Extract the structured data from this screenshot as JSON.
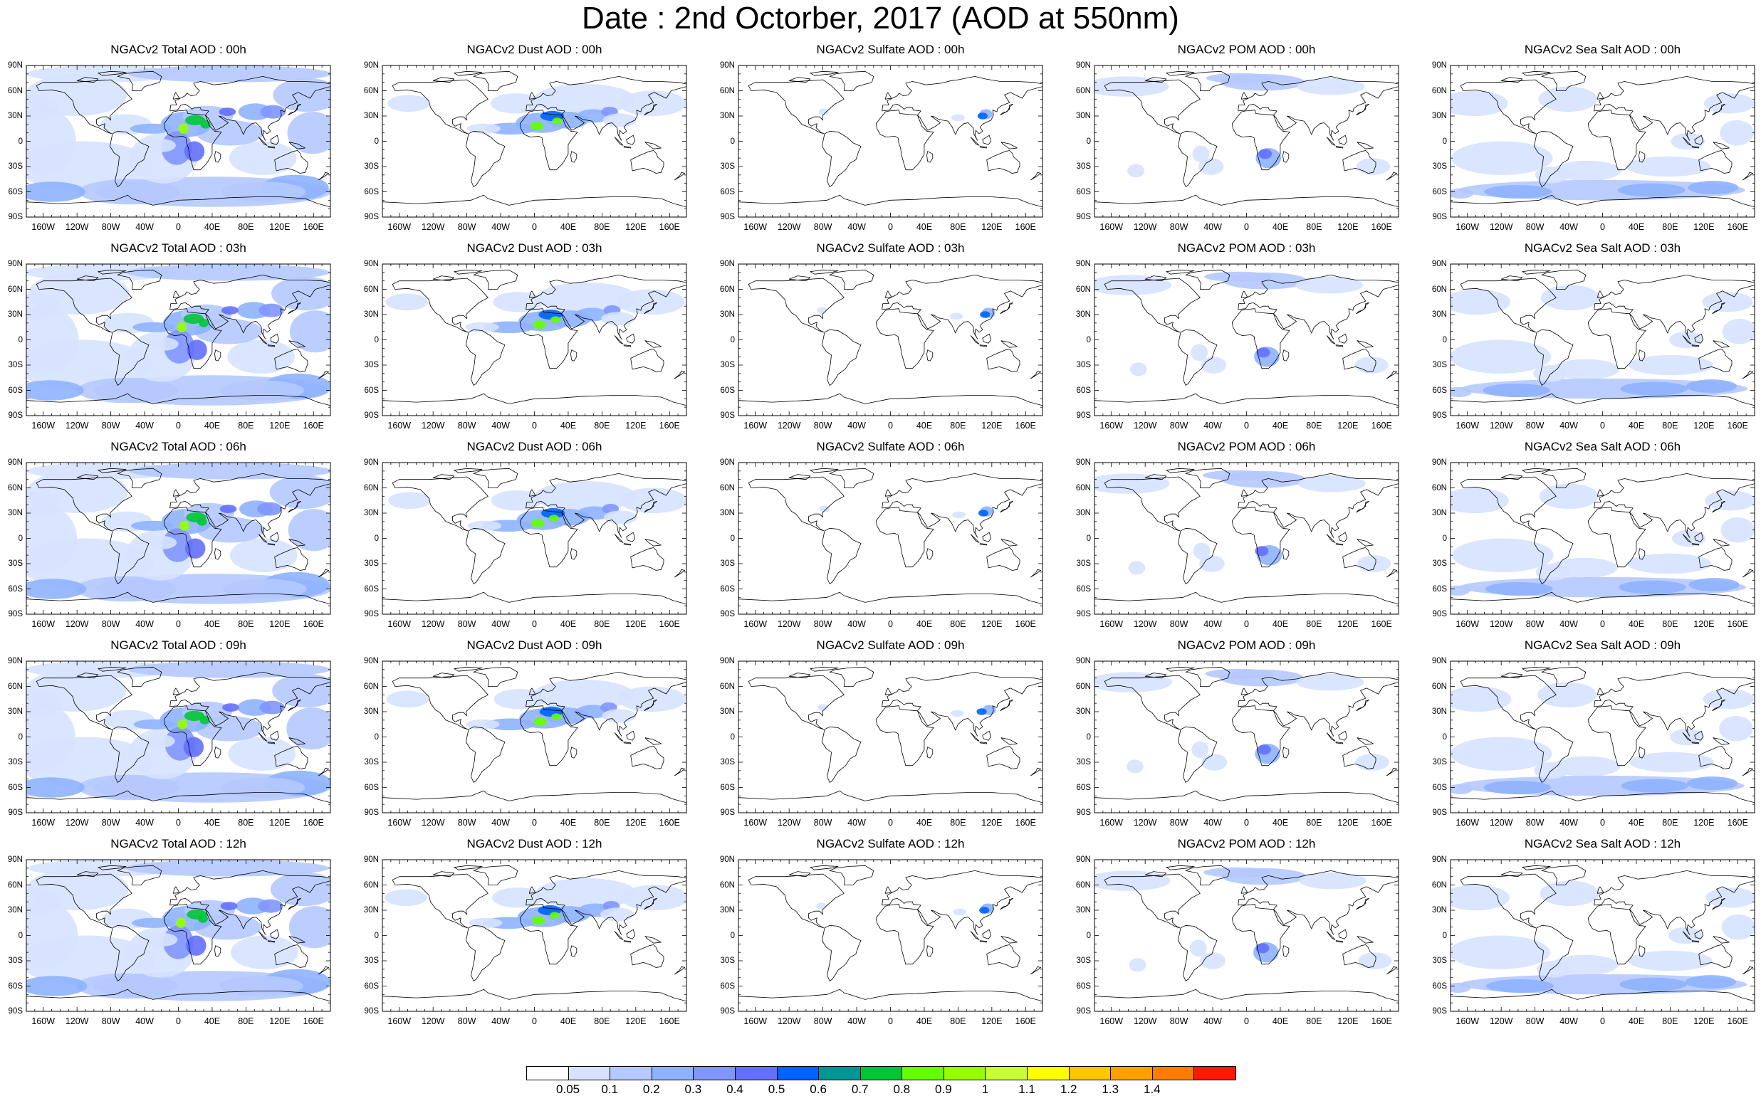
{
  "title": "Date : 2nd Octorber, 2017 (AOD at 550nm)",
  "lat_ticks": [
    "90N",
    "60N",
    "30N",
    "0",
    "30S",
    "60S",
    "90S"
  ],
  "lon_ticks": [
    "160W",
    "120W",
    "80W",
    "40W",
    "0",
    "40E",
    "80E",
    "120E",
    "160E"
  ],
  "panels": [
    [
      {
        "title": "NGACv2 Total AOD : 00h",
        "field": "total"
      },
      {
        "title": "NGACv2 Dust AOD : 00h",
        "field": "dust"
      },
      {
        "title": "NGACv2 Sulfate AOD : 00h",
        "field": "sulfate"
      },
      {
        "title": "NGACv2 POM AOD : 00h",
        "field": "pom"
      },
      {
        "title": "NGACv2 Sea Salt AOD : 00h",
        "field": "seasalt"
      }
    ],
    [
      {
        "title": "NGACv2 Total AOD : 03h",
        "field": "total"
      },
      {
        "title": "NGACv2 Dust AOD : 03h",
        "field": "dust"
      },
      {
        "title": "NGACv2 Sulfate AOD : 03h",
        "field": "sulfate"
      },
      {
        "title": "NGACv2 POM AOD : 03h",
        "field": "pom"
      },
      {
        "title": "NGACv2 Sea Salt AOD : 03h",
        "field": "seasalt"
      }
    ],
    [
      {
        "title": "NGACv2 Total AOD : 06h",
        "field": "total"
      },
      {
        "title": "NGACv2 Dust AOD : 06h",
        "field": "dust"
      },
      {
        "title": "NGACv2 Sulfate AOD : 06h",
        "field": "sulfate"
      },
      {
        "title": "NGACv2 POM AOD : 06h",
        "field": "pom"
      },
      {
        "title": "NGACv2 Sea Salt AOD : 06h",
        "field": "seasalt"
      }
    ],
    [
      {
        "title": "NGACv2 Total AOD : 09h",
        "field": "total"
      },
      {
        "title": "NGACv2 Dust AOD : 09h",
        "field": "dust"
      },
      {
        "title": "NGACv2 Sulfate AOD : 09h",
        "field": "sulfate"
      },
      {
        "title": "NGACv2 POM AOD : 09h",
        "field": "pom"
      },
      {
        "title": "NGACv2 Sea Salt  AOD : 09h",
        "field": "seasalt"
      }
    ],
    [
      {
        "title": "NGACv2 Total AOD :  12h",
        "field": "total"
      },
      {
        "title": "NGACv2 Dust AOD : 12h",
        "field": "dust"
      },
      {
        "title": "NGACv2 Sulfate AOD : 12h",
        "field": "sulfate"
      },
      {
        "title": "NGACv2 POM  AOD : 12h",
        "field": "pom"
      },
      {
        "title": "NGACv2 Sea Salt AOD : 12h",
        "field": "seasalt"
      }
    ]
  ],
  "colorbar": {
    "labels": [
      "0.05",
      "0.1",
      "0.2",
      "0.3",
      "0.4",
      "0.5",
      "0.6",
      "0.7",
      "0.8",
      "0.9",
      "1",
      "1.1",
      "1.2",
      "1.3",
      "1.4"
    ],
    "colors": [
      "#ffffff",
      "#d6e2ff",
      "#b5c9ff",
      "#8eb2ff",
      "#7f96ff",
      "#6370ff",
      "#0063ff",
      "#009696",
      "#00c633",
      "#63ff00",
      "#96ff00",
      "#c6ff33",
      "#ffff00",
      "#ffc600",
      "#ffa000",
      "#ff7c00",
      "#ff1900"
    ]
  }
}
